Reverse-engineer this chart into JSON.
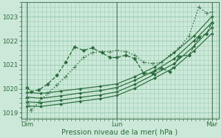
{
  "xlabel": "Pression niveau de la mer( hPa )",
  "bg_color": "#cce8d8",
  "grid_color": "#99ccb0",
  "line_color": "#2a6b3a",
  "axis_color": "#4a7a5a",
  "tick_label_color": "#2a6b3a",
  "xlim": [
    0.0,
    2.0
  ],
  "ylim": [
    1018.75,
    1023.6
  ],
  "yticks": [
    1019,
    1020,
    1021,
    1022,
    1023
  ],
  "xtick_labels": [
    "Dim",
    "Lun",
    "Mar"
  ],
  "xtick_positions": [
    0.06,
    0.97,
    1.93
  ],
  "vlines": [
    0.06,
    0.97,
    1.93
  ],
  "series": [
    {
      "x": [
        0.06,
        0.1,
        0.18,
        0.27,
        0.36,
        0.45,
        0.54,
        0.63,
        0.72,
        0.82,
        0.9,
        0.97,
        1.06,
        1.15,
        1.24,
        1.33,
        1.42,
        1.51,
        1.6,
        1.7,
        1.8,
        1.88,
        1.93
      ],
      "y": [
        1019.6,
        1019.1,
        1019.45,
        1019.8,
        1020.15,
        1020.5,
        1020.9,
        1021.3,
        1021.5,
        1021.55,
        1021.55,
        1021.6,
        1021.55,
        1021.4,
        1021.1,
        1021.05,
        1021.1,
        1021.4,
        1021.7,
        1022.2,
        1023.4,
        1023.15,
        1023.2
      ],
      "style": ":",
      "marker": "+",
      "markersize": 4.0,
      "linewidth": 1.1
    },
    {
      "x": [
        0.06,
        0.2,
        0.4,
        0.6,
        0.8,
        0.97,
        1.15,
        1.35,
        1.55,
        1.75,
        1.93
      ],
      "y": [
        1019.85,
        1019.8,
        1019.9,
        1020.0,
        1020.1,
        1020.2,
        1020.5,
        1020.9,
        1021.5,
        1022.2,
        1023.0
      ],
      "style": "-",
      "marker": "D",
      "markersize": 2.0,
      "linewidth": 0.9
    },
    {
      "x": [
        0.06,
        0.2,
        0.4,
        0.6,
        0.8,
        0.97,
        1.15,
        1.35,
        1.55,
        1.75,
        1.93
      ],
      "y": [
        1019.65,
        1019.6,
        1019.7,
        1019.82,
        1019.92,
        1020.05,
        1020.35,
        1020.75,
        1021.25,
        1022.0,
        1022.75
      ],
      "style": "-",
      "marker": "D",
      "markersize": 2.0,
      "linewidth": 0.9
    },
    {
      "x": [
        0.06,
        0.2,
        0.4,
        0.6,
        0.8,
        0.97,
        1.15,
        1.35,
        1.55,
        1.75,
        1.93
      ],
      "y": [
        1019.45,
        1019.42,
        1019.52,
        1019.64,
        1019.74,
        1019.87,
        1020.18,
        1020.6,
        1021.05,
        1021.78,
        1022.55
      ],
      "style": "-",
      "marker": "D",
      "markersize": 2.0,
      "linewidth": 0.9
    },
    {
      "x": [
        0.06,
        0.2,
        0.4,
        0.6,
        0.8,
        0.97,
        1.15,
        1.35,
        1.55,
        1.75,
        1.93
      ],
      "y": [
        1019.28,
        1019.26,
        1019.36,
        1019.48,
        1019.58,
        1019.72,
        1020.02,
        1020.44,
        1020.88,
        1021.58,
        1022.3
      ],
      "style": "-",
      "marker": "D",
      "markersize": 2.0,
      "linewidth": 0.9
    },
    {
      "x": [
        0.06,
        0.1,
        0.18,
        0.27,
        0.36,
        0.45,
        0.54,
        0.63,
        0.72,
        0.82,
        0.9,
        0.97,
        1.06,
        1.15,
        1.24,
        1.33,
        1.42,
        1.51,
        1.6,
        1.7,
        1.8,
        1.88,
        1.93
      ],
      "y": [
        1020.05,
        1019.88,
        1019.95,
        1020.2,
        1020.55,
        1021.1,
        1021.75,
        1021.6,
        1021.7,
        1021.5,
        1021.3,
        1021.3,
        1021.4,
        1021.25,
        1020.65,
        1020.65,
        1020.85,
        1020.7,
        1021.35,
        1021.4,
        1022.15,
        1022.3,
        1022.75
      ],
      "style": "--",
      "marker": "D",
      "markersize": 2.5,
      "linewidth": 1.0
    }
  ]
}
